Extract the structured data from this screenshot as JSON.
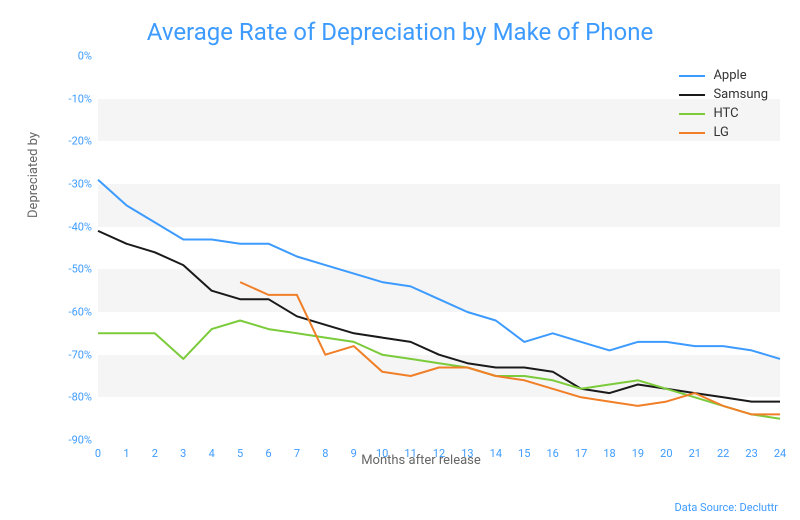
{
  "title": "Average Rate of Depreciation by Make of Phone",
  "title_color": "#3d9bff",
  "title_fontsize": 24,
  "xlabel": "Months after release",
  "ylabel": "Depreciated by",
  "data_source": "Data Source: Decluttr",
  "source_color": "#3d9bff",
  "background_color": "#ffffff",
  "band_color": "#f5f5f5",
  "axis_text_color": "#3d9bff",
  "axis_text_size": 11,
  "chart": {
    "type": "line",
    "x": [
      0,
      1,
      2,
      3,
      4,
      5,
      6,
      7,
      8,
      9,
      10,
      11,
      12,
      13,
      14,
      15,
      16,
      17,
      18,
      19,
      20,
      21,
      22,
      23,
      24
    ],
    "xlim": [
      0,
      24
    ],
    "ylim": [
      -90,
      0
    ],
    "ytick_step": 10,
    "ytick_suffix": "%",
    "line_width": 2,
    "series": [
      {
        "name": "Apple",
        "color": "#3d9bff",
        "y": [
          -29,
          -35,
          -39,
          -43,
          -43,
          -44,
          -44,
          -47,
          -49,
          -51,
          -53,
          -54,
          -57,
          -60,
          -62,
          -67,
          -65,
          -67,
          -69,
          -67,
          -67,
          -68,
          -68,
          -69,
          -71
        ]
      },
      {
        "name": "Samsung",
        "color": "#1a1a1a",
        "y": [
          -41,
          -44,
          -46,
          -49,
          -55,
          -57,
          -57,
          -61,
          -63,
          -65,
          -66,
          -67,
          -70,
          -72,
          -73,
          -73,
          -74,
          -78,
          -79,
          -77,
          -78,
          -79,
          -80,
          -81,
          -81
        ]
      },
      {
        "name": "HTC",
        "color": "#7bcb3b",
        "y": [
          -65,
          -65,
          -65,
          -71,
          -64,
          -62,
          -64,
          -65,
          -66,
          -67,
          -70,
          -71,
          -72,
          -73,
          -75,
          -75,
          -76,
          -78,
          -77,
          -76,
          -78,
          -80,
          -82,
          -84,
          -85
        ]
      },
      {
        "name": "LG",
        "color": "#f07f28",
        "y": [
          null,
          null,
          null,
          null,
          null,
          -53,
          -56,
          -56,
          -70,
          -68,
          -74,
          -75,
          -73,
          -73,
          -75,
          -76,
          -78,
          -80,
          -81,
          -82,
          -81,
          -79,
          -82,
          -84,
          -84
        ]
      }
    ],
    "legend_position": "top-right"
  }
}
